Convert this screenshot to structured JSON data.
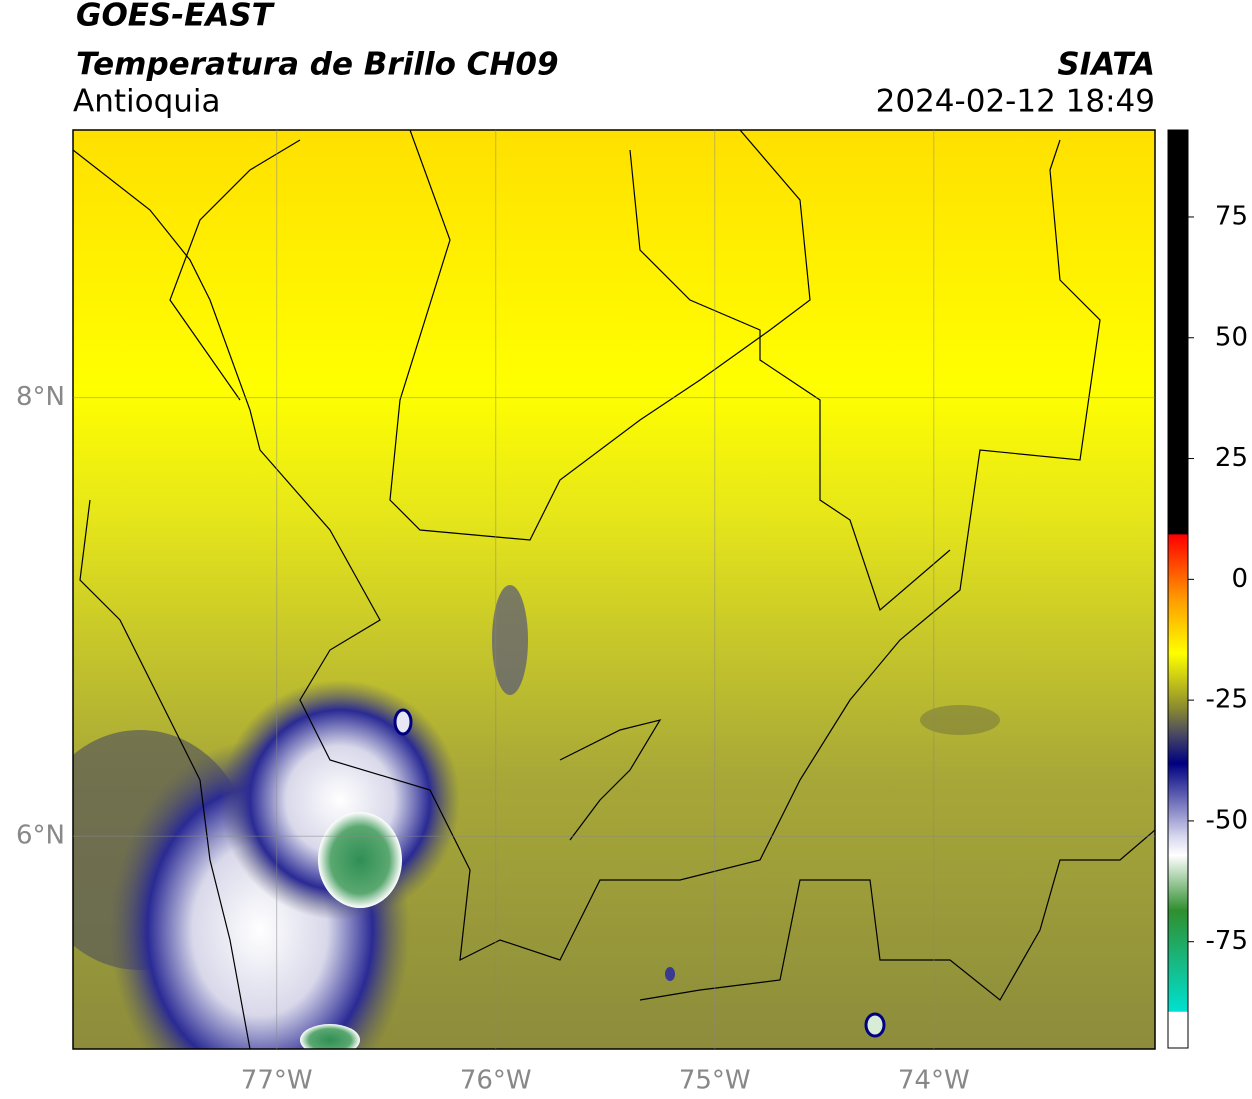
{
  "header": {
    "title": "GOES-EAST",
    "subtitle": "Temperatura de Brillo CH09",
    "region": "Antioquia",
    "source": "SIATA",
    "datetime": "2024-02-12 18:49"
  },
  "map": {
    "xlim": [
      -77.93,
      -72.99
    ],
    "ylim": [
      5.03,
      9.22
    ],
    "xticks": [
      {
        "value": -77,
        "label": "77°W"
      },
      {
        "value": -76,
        "label": "76°W"
      },
      {
        "value": -75,
        "label": "75°W"
      },
      {
        "value": -74,
        "label": "74°W"
      }
    ],
    "yticks": [
      {
        "value": 8,
        "label": "8°N"
      },
      {
        "value": 6,
        "label": "6°N"
      }
    ],
    "grid": true
  },
  "colorbar": {
    "lim": [
      -97,
      93
    ],
    "ticks": [
      75,
      50,
      25,
      0,
      -25,
      -50,
      -75
    ]
  }
}
